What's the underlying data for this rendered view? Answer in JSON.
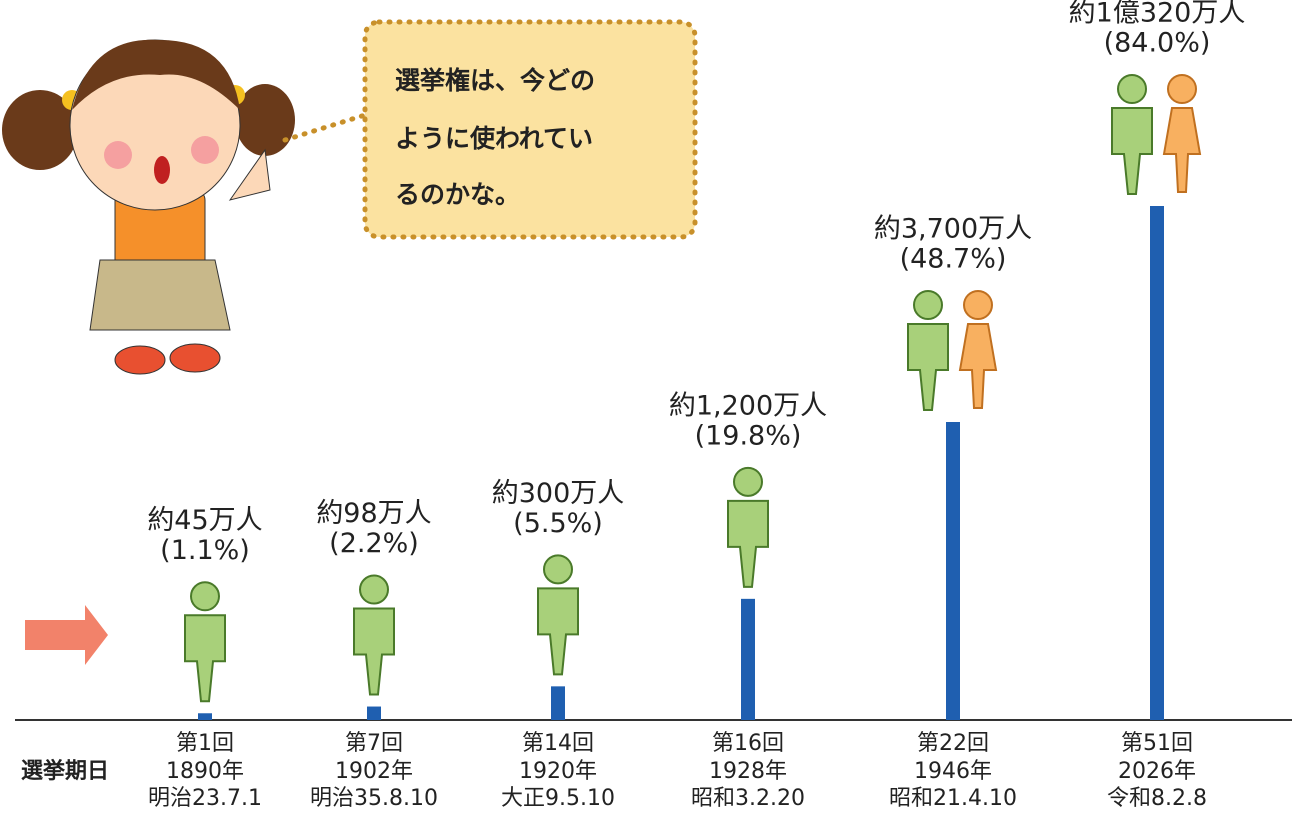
{
  "chart_data": {
    "type": "bar",
    "categories": [
      "第1回",
      "第7回",
      "第14回",
      "第16回",
      "第22回",
      "第51回"
    ],
    "years": [
      "1890年",
      "1902年",
      "1920年",
      "1928年",
      "1946年",
      "2026年"
    ],
    "dates": [
      "明治23.7.1",
      "明治35.8.10",
      "大正9.5.10",
      "昭和3.2.20",
      "昭和21.4.10",
      "令和8.2.8"
    ],
    "people": [
      "約45万人",
      "約98万人",
      "約300万人",
      "約1,200万人",
      "約3,700万人",
      "約1億320万人"
    ],
    "values": [
      1.1,
      2.2,
      5.5,
      19.8,
      48.7,
      84.0
    ],
    "value_labels": [
      "(1.1%)",
      "(2.2%)",
      "(5.5%)",
      "(19.8%)",
      "(48.7%)",
      "(84.0%)"
    ],
    "color": "#1f5fb0",
    "x_label": "選挙期日"
  },
  "speech": [
    "選挙権は、今どの",
    "ように使われてい",
    "るのかな。"
  ]
}
